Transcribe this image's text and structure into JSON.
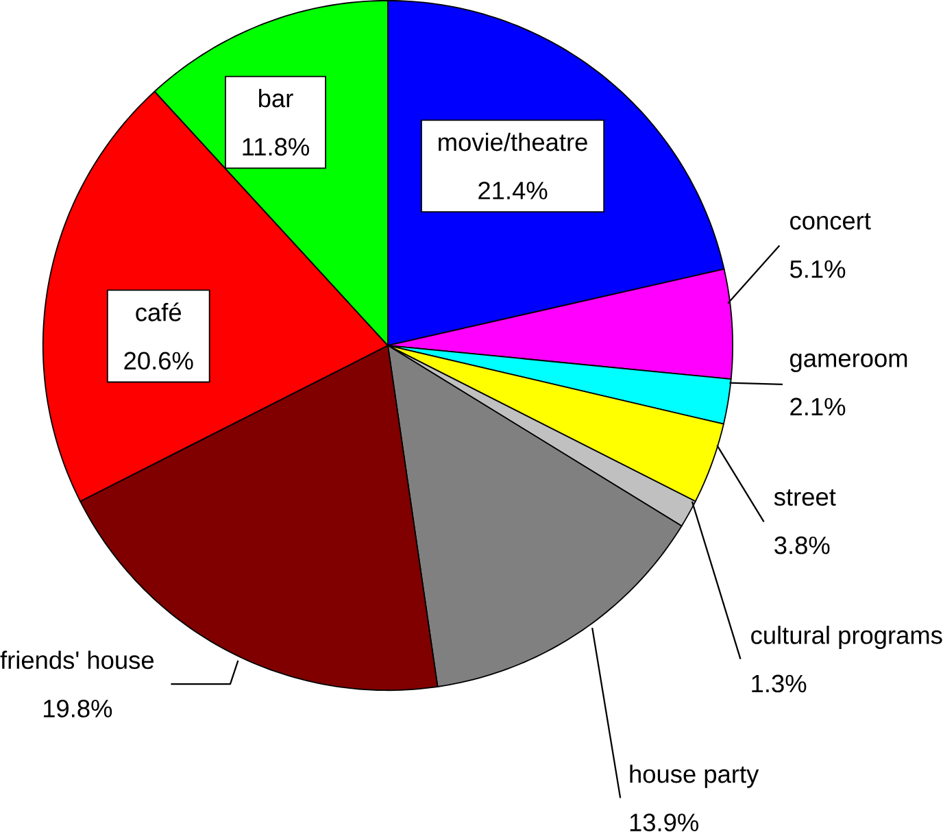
{
  "chart_data": {
    "type": "pie",
    "categories": [
      "movie/theatre",
      "concert",
      "gameroom",
      "street",
      "cultural programs",
      "house party",
      "friends' house",
      "café",
      "bar"
    ],
    "values": [
      21.4,
      5.1,
      2.1,
      3.8,
      1.3,
      13.9,
      19.8,
      20.6,
      11.8
    ],
    "colors": [
      "#0000ff",
      "#ff00ff",
      "#00ffff",
      "#ffff00",
      "#c0c0c0",
      "#808080",
      "#800000",
      "#ff0000",
      "#00ff00"
    ],
    "value_labels": [
      "21.4%",
      "5.1%",
      "2.1%",
      "3.8%",
      "1.3%",
      "13.9%",
      "19.8%",
      "20.6%",
      "11.8%"
    ]
  }
}
